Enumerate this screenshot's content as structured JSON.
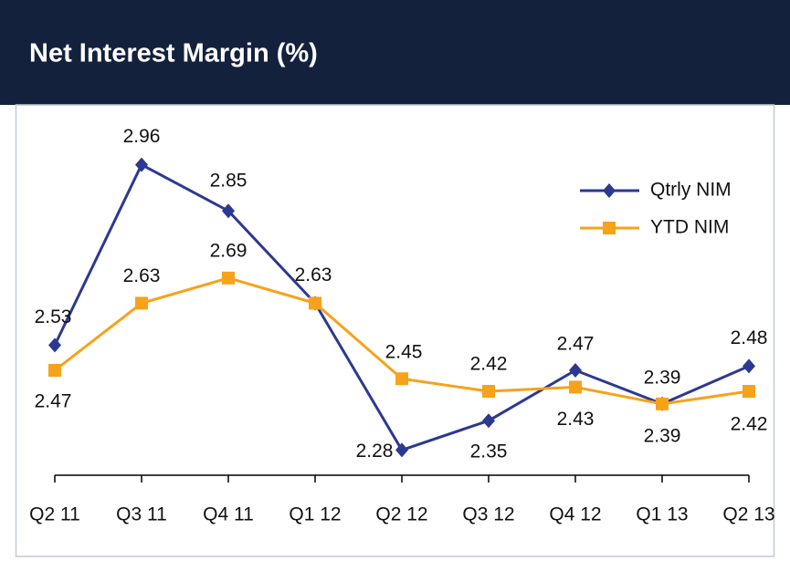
{
  "chart_data": {
    "type": "line",
    "title": "Net Interest Margin (%)",
    "categories": [
      "Q2 11",
      "Q3 11",
      "Q4 11",
      "Q1 12",
      "Q2 12",
      "Q3 12",
      "Q4 12",
      "Q1 13",
      "Q2 13"
    ],
    "series": [
      {
        "name": "Qtrly NIM",
        "color": "#2b3990",
        "marker": "diamond",
        "values": [
          2.53,
          2.96,
          2.85,
          2.63,
          2.28,
          2.35,
          2.47,
          2.39,
          2.48
        ]
      },
      {
        "name": "YTD NIM",
        "color": "#f7a21b",
        "marker": "square",
        "values": [
          2.47,
          2.63,
          2.69,
          2.63,
          2.45,
          2.42,
          2.43,
          2.39,
          2.42
        ]
      }
    ],
    "ylim": [
      2.22,
      3.07
    ],
    "legend": "upper right"
  }
}
